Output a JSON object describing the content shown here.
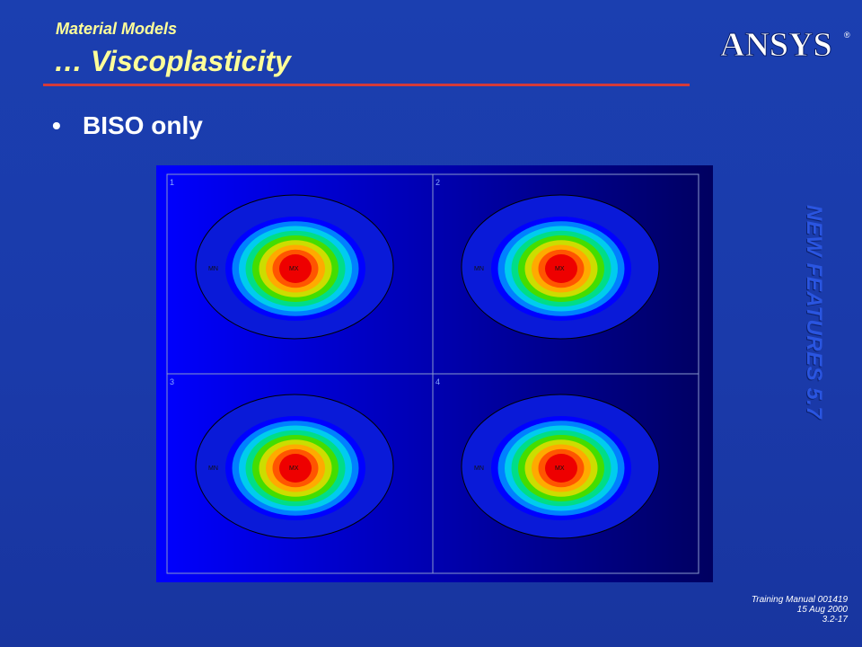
{
  "header": {
    "subtitle": "Material Models",
    "title": "… Viscoplasticity",
    "logo_text": "ANSYS",
    "logo_reg": "®"
  },
  "bullet": {
    "symbol": "•",
    "text": "BISO only"
  },
  "side_banner": "NEW FEATURES 5.7",
  "plot": {
    "panels": [
      {
        "number": "1",
        "mn_label": "MN",
        "mx_label": "MX"
      },
      {
        "number": "2",
        "mn_label": "MN",
        "mx_label": "MX"
      },
      {
        "number": "3",
        "mn_label": "MN",
        "mx_label": "MX"
      },
      {
        "number": "4",
        "mn_label": "MN",
        "mx_label": "MX"
      }
    ],
    "contour_colors": [
      "#0000ff",
      "#0080ff",
      "#00ccee",
      "#00dd88",
      "#44dd00",
      "#ccdd00",
      "#ffaa00",
      "#ff5500",
      "#ee0000"
    ],
    "outer_color": "#0a1ad8",
    "bg_left": "#0000ff",
    "bg_right": "#000060"
  },
  "footer": {
    "line1": "Training Manual 001419",
    "line2": "15 Aug 2000",
    "line3": "3.2-17"
  }
}
